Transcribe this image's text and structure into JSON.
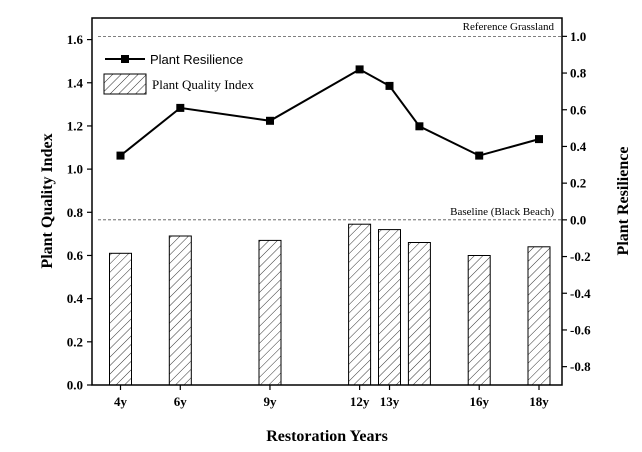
{
  "chart_data": {
    "type": "bar+line",
    "xlabel": "Restoration Years",
    "ylabel_left": "Plant Quality Index",
    "ylabel_right": "Plant Resilience",
    "ylim_left": [
      0,
      1.7
    ],
    "ylim_right": [
      -0.9,
      1.1
    ],
    "left_ticks": [
      "0.0",
      "0.2",
      "0.4",
      "0.6",
      "0.8",
      "1.0",
      "1.2",
      "1.4",
      "1.6"
    ],
    "right_ticks": [
      "-0.8",
      "-0.6",
      "-0.4",
      "-0.2",
      "0.0",
      "0.2",
      "0.4",
      "0.6",
      "0.8",
      "1.0"
    ],
    "x_ticks": [
      "4y",
      "6y",
      "9y",
      "12y",
      "13y",
      "16y",
      "18y"
    ],
    "reference_lines": [
      {
        "label": "Reference Grassland",
        "value": 1.0,
        "axis": "right"
      },
      {
        "label": "Baseline (Black Beach)",
        "value": 0.0,
        "axis": "right"
      }
    ],
    "legend": {
      "line_label": "Plant Resilience",
      "bar_label": "Plant Quality Index"
    },
    "series": [
      {
        "name": "Plant Quality Index",
        "type": "bar",
        "axis": "left",
        "x": [
          4,
          6,
          9,
          12,
          13,
          14,
          16,
          18
        ],
        "values": [
          0.61,
          0.69,
          0.67,
          0.745,
          0.72,
          0.66,
          0.6,
          0.64
        ]
      },
      {
        "name": "Plant Resilience",
        "type": "line",
        "axis": "right",
        "x": [
          4,
          6,
          9,
          12,
          13,
          14,
          16,
          18
        ],
        "values": [
          0.35,
          0.61,
          0.54,
          0.82,
          0.73,
          0.51,
          0.35,
          0.44
        ]
      }
    ]
  }
}
